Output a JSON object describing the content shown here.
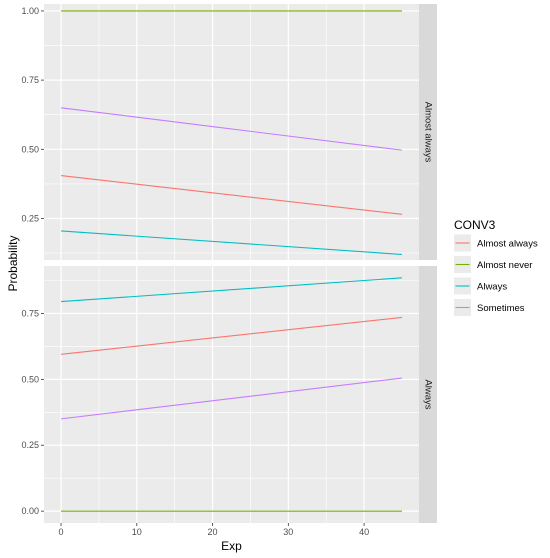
{
  "chart_data": {
    "type": "line",
    "xlabel": "Exp",
    "ylabel": "Probability",
    "legend": {
      "title": "CONV3",
      "position": "right"
    },
    "x_ticks": [
      0,
      10,
      20,
      30,
      40
    ],
    "xlim": [
      -2.25,
      47.25
    ],
    "grid": true,
    "colors": {
      "Almost always": "#F8766D",
      "Almost never": "#7CAE00",
      "Always": "#00BFC4",
      "Sometimes": "#C77CFF"
    },
    "panels": [
      {
        "strip": "Almost always",
        "ylim": [
          0.1,
          1.025
        ],
        "y_ticks": [
          0.25,
          0.5,
          0.75,
          1.0
        ],
        "y_tick_labels": [
          "0.25",
          "0.50",
          "0.75",
          "1.00"
        ],
        "series": [
          {
            "name": "Almost always",
            "x": [
              0,
              45
            ],
            "values": [
              0.405,
              0.265
            ]
          },
          {
            "name": "Almost never",
            "x": [
              0,
              45
            ],
            "values": [
              1.0,
              1.0
            ]
          },
          {
            "name": "Always",
            "x": [
              0,
              45
            ],
            "values": [
              0.205,
              0.12
            ]
          },
          {
            "name": "Sometimes",
            "x": [
              0,
              45
            ],
            "values": [
              0.65,
              0.497
            ]
          }
        ]
      },
      {
        "strip": "Always",
        "ylim": [
          -0.045,
          0.93
        ],
        "y_ticks": [
          0.0,
          0.25,
          0.5,
          0.75
        ],
        "y_tick_labels": [
          "0.00",
          "0.25",
          "0.50",
          "0.75"
        ],
        "series": [
          {
            "name": "Almost always",
            "x": [
              0,
              45
            ],
            "values": [
              0.595,
              0.735
            ]
          },
          {
            "name": "Almost never",
            "x": [
              0,
              45
            ],
            "values": [
              0.0,
              0.0
            ]
          },
          {
            "name": "Always",
            "x": [
              0,
              45
            ],
            "values": [
              0.795,
              0.885
            ]
          },
          {
            "name": "Sometimes",
            "x": [
              0,
              45
            ],
            "values": [
              0.35,
              0.505
            ]
          }
        ]
      }
    ],
    "legend_entries": [
      "Almost always",
      "Almost never",
      "Always",
      "Sometimes"
    ]
  }
}
